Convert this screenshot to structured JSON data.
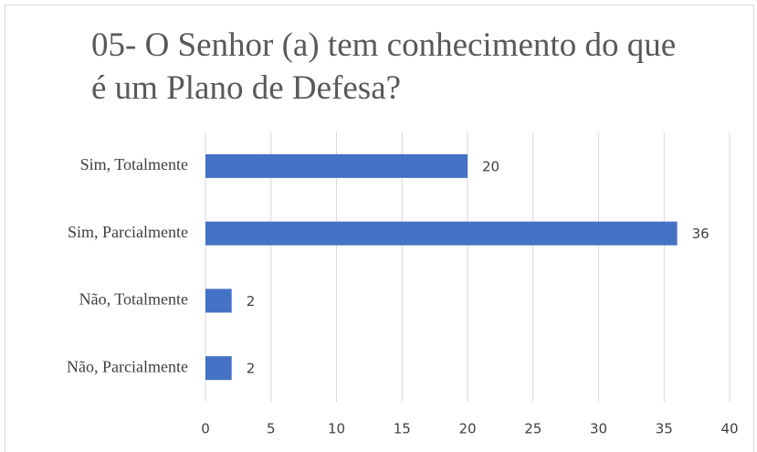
{
  "chart_data": {
    "type": "bar",
    "orientation": "horizontal",
    "title": "05- O Senhor (a) tem conhecimento do que é um Plano de Defesa?",
    "categories": [
      "Sim, Totalmente",
      "Sim, Parcialmente",
      "Não, Totalmente",
      "Não, Parcialmente"
    ],
    "values": [
      20,
      36,
      2,
      2
    ],
    "color": "#4472c4",
    "xlim": [
      0,
      40
    ],
    "xticks": [
      0,
      5,
      10,
      15,
      20,
      25,
      30,
      35,
      40
    ],
    "grid": true
  }
}
